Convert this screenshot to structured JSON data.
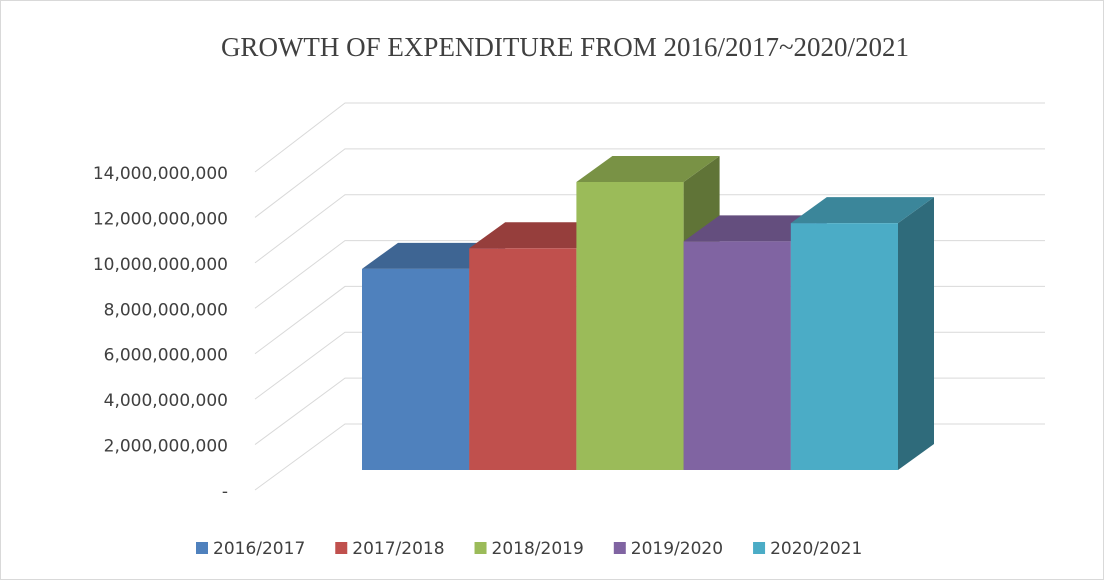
{
  "chart_data": {
    "type": "bar3d",
    "title": "GROWTH OF EXPENDITURE FROM 2016/2017~2020/2021",
    "series": [
      {
        "name": "2016/2017",
        "color": "#4f81bd",
        "values": [
          8800000000
        ]
      },
      {
        "name": "2017/2018",
        "color": "#c0504d",
        "values": [
          9700000000
        ]
      },
      {
        "name": "2018/2019",
        "color": "#9bbb59",
        "values": [
          12600000000
        ]
      },
      {
        "name": "2019/2020",
        "color": "#8064a2",
        "values": [
          10000000000
        ]
      },
      {
        "name": "2020/2021",
        "color": "#4bacc6",
        "values": [
          10800000000
        ]
      }
    ],
    "ylim": [
      0,
      14000000000
    ],
    "yticks": [
      {
        "value": 0,
        "label": "-"
      },
      {
        "value": 2000000000,
        "label": "2,000,000,000"
      },
      {
        "value": 4000000000,
        "label": "4,000,000,000"
      },
      {
        "value": 6000000000,
        "label": "6,000,000,000"
      },
      {
        "value": 8000000000,
        "label": "8,000,000,000"
      },
      {
        "value": 10000000000,
        "label": "10,000,000,000"
      },
      {
        "value": 12000000000,
        "label": "12,000,000,000"
      },
      {
        "value": 14000000000,
        "label": "14,000,000,000"
      }
    ],
    "grid": true,
    "legend": "bottom"
  }
}
